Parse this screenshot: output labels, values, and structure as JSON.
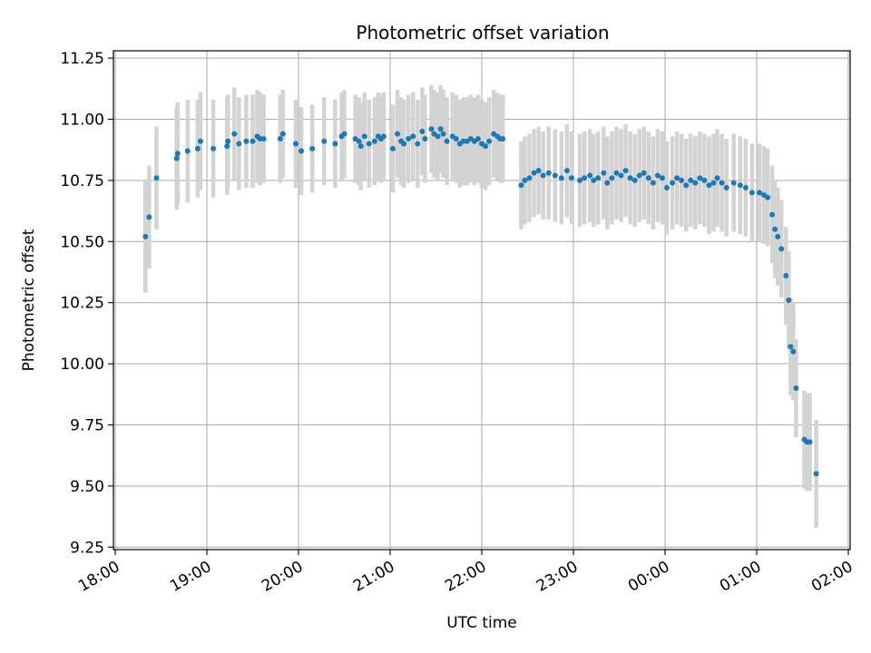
{
  "chart_data": {
    "type": "scatter",
    "title": "Photometric offset variation",
    "xlabel": "UTC time",
    "ylabel": "Photometric offset",
    "x_format": "HH:MM",
    "x_tick_labels": [
      "18:00",
      "19:00",
      "20:00",
      "21:00",
      "22:00",
      "23:00",
      "00:00",
      "01:00",
      "02:00"
    ],
    "x_tick_values_hours": [
      0,
      1,
      2,
      3,
      4,
      5,
      6,
      7,
      8
    ],
    "y_tick_labels": [
      "9.25",
      "9.50",
      "9.75",
      "10.00",
      "10.25",
      "10.50",
      "10.75",
      "11.00",
      "11.25"
    ],
    "y_tick_values": [
      9.25,
      9.5,
      9.75,
      10.0,
      10.25,
      10.5,
      10.75,
      11.0,
      11.25
    ],
    "xlim_hours": [
      -0.02,
      8.02
    ],
    "ylim": [
      9.24,
      11.28
    ],
    "grid": true,
    "legend": "none",
    "colors": {
      "points": "#1f77b4",
      "errorbars": "#d3d3d3",
      "grid": "#b0b0b0",
      "axes": "#000000"
    },
    "point_sizes": {
      "marker_radius_px": 3
    },
    "series": [
      {
        "x_hours": [
          0.33,
          0.37,
          0.45,
          0.67,
          0.68,
          0.79,
          0.9,
          0.93,
          1.07,
          1.22,
          1.23,
          1.3,
          1.35,
          1.43,
          1.5,
          1.55,
          1.58,
          1.62,
          1.8,
          1.83,
          1.97,
          2.03,
          2.15,
          2.28,
          2.4,
          2.47,
          2.5,
          2.62,
          2.66,
          2.68,
          2.72,
          2.77,
          2.83,
          2.87,
          2.9,
          2.93,
          3.03,
          3.08,
          3.12,
          3.15,
          3.2,
          3.25,
          3.3,
          3.35,
          3.38,
          3.45,
          3.48,
          3.52,
          3.55,
          3.58,
          3.62,
          3.68,
          3.72,
          3.76,
          3.8,
          3.84,
          3.88,
          3.92,
          3.96,
          4.0,
          4.04,
          4.08,
          4.13,
          4.17,
          4.2,
          4.23,
          4.43,
          4.47,
          4.52,
          4.57,
          4.62,
          4.67,
          4.73,
          4.8,
          4.87,
          4.93,
          4.98,
          5.07,
          5.12,
          5.18,
          5.22,
          5.27,
          5.33,
          5.37,
          5.42,
          5.47,
          5.52,
          5.57,
          5.62,
          5.67,
          5.72,
          5.77,
          5.82,
          5.87,
          5.92,
          5.97,
          6.02,
          6.08,
          6.13,
          6.18,
          6.23,
          6.28,
          6.33,
          6.38,
          6.43,
          6.48,
          6.53,
          6.57,
          6.62,
          6.67,
          6.75,
          6.82,
          6.88,
          6.95,
          7.03,
          7.08,
          7.12,
          7.17,
          7.2,
          7.23,
          7.27,
          7.32,
          7.35,
          7.37,
          7.4,
          7.43,
          7.52,
          7.55,
          7.58,
          7.65
        ],
        "y": [
          10.52,
          10.6,
          10.76,
          10.84,
          10.86,
          10.87,
          10.88,
          10.91,
          10.88,
          10.89,
          10.91,
          10.94,
          10.9,
          10.91,
          10.91,
          10.93,
          10.92,
          10.92,
          10.92,
          10.94,
          10.9,
          10.87,
          10.88,
          10.91,
          10.9,
          10.93,
          10.94,
          10.92,
          10.91,
          10.89,
          10.93,
          10.9,
          10.91,
          10.93,
          10.92,
          10.93,
          10.88,
          10.94,
          10.91,
          10.9,
          10.92,
          10.93,
          10.9,
          10.95,
          10.92,
          10.96,
          10.94,
          10.93,
          10.96,
          10.94,
          10.91,
          10.93,
          10.92,
          10.9,
          10.91,
          10.91,
          10.92,
          10.91,
          10.92,
          10.9,
          10.89,
          10.91,
          10.94,
          10.93,
          10.92,
          10.92,
          10.73,
          10.75,
          10.76,
          10.78,
          10.79,
          10.77,
          10.78,
          10.77,
          10.76,
          10.79,
          10.76,
          10.75,
          10.76,
          10.77,
          10.75,
          10.76,
          10.78,
          10.74,
          10.76,
          10.78,
          10.77,
          10.79,
          10.76,
          10.75,
          10.77,
          10.78,
          10.76,
          10.74,
          10.77,
          10.76,
          10.72,
          10.74,
          10.76,
          10.75,
          10.73,
          10.75,
          10.74,
          10.76,
          10.75,
          10.73,
          10.74,
          10.76,
          10.74,
          10.72,
          10.74,
          10.73,
          10.72,
          10.7,
          10.7,
          10.69,
          10.68,
          10.61,
          10.55,
          10.52,
          10.47,
          10.36,
          10.26,
          10.07,
          10.05,
          9.9,
          9.69,
          9.68,
          9.68,
          9.55
        ],
        "y_err": [
          0.23,
          0.21,
          0.21,
          0.21,
          0.21,
          0.21,
          0.2,
          0.2,
          0.2,
          0.2,
          0.19,
          0.19,
          0.19,
          0.19,
          0.19,
          0.19,
          0.19,
          0.18,
          0.18,
          0.18,
          0.18,
          0.18,
          0.18,
          0.18,
          0.18,
          0.18,
          0.18,
          0.18,
          0.18,
          0.18,
          0.18,
          0.18,
          0.18,
          0.18,
          0.18,
          0.18,
          0.18,
          0.18,
          0.18,
          0.18,
          0.18,
          0.18,
          0.18,
          0.18,
          0.18,
          0.18,
          0.18,
          0.18,
          0.18,
          0.18,
          0.18,
          0.18,
          0.18,
          0.18,
          0.18,
          0.18,
          0.18,
          0.18,
          0.18,
          0.18,
          0.18,
          0.18,
          0.18,
          0.18,
          0.18,
          0.18,
          0.18,
          0.18,
          0.18,
          0.18,
          0.18,
          0.18,
          0.19,
          0.19,
          0.19,
          0.19,
          0.19,
          0.19,
          0.19,
          0.19,
          0.19,
          0.19,
          0.19,
          0.19,
          0.19,
          0.19,
          0.19,
          0.19,
          0.19,
          0.19,
          0.19,
          0.19,
          0.19,
          0.19,
          0.19,
          0.19,
          0.19,
          0.19,
          0.19,
          0.19,
          0.19,
          0.19,
          0.19,
          0.19,
          0.19,
          0.2,
          0.2,
          0.2,
          0.2,
          0.2,
          0.2,
          0.2,
          0.2,
          0.2,
          0.2,
          0.2,
          0.2,
          0.2,
          0.2,
          0.2,
          0.2,
          0.2,
          0.2,
          0.2,
          0.2,
          0.2,
          0.2,
          0.2,
          0.2,
          0.22
        ]
      }
    ]
  }
}
